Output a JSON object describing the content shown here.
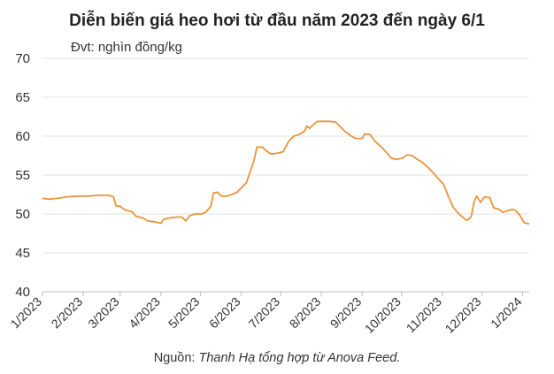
{
  "header": {
    "title": "Diễn biến giá heo hơi từ đầu năm 2023 đến ngày 6/1",
    "unit": "Đvt: nghìn đồng/kg"
  },
  "footer": {
    "source_label": "Nguồn: ",
    "source_text": "Thanh Hạ tổng hợp từ Anova Feed."
  },
  "colors": {
    "line": "#e8953a",
    "grid": "#e3e3e3"
  },
  "chart_data": {
    "type": "line",
    "title": "Diễn biến giá heo hơi từ đầu năm 2023 đến ngày 6/1",
    "ylabel": "Đvt: nghìn đồng/kg",
    "xlabel": "",
    "ylim": [
      40,
      70
    ],
    "yticks": [
      40,
      45,
      50,
      55,
      60,
      65,
      70
    ],
    "grid": "horizontal",
    "xlim": [
      "2023-01-01",
      "2024-01-06"
    ],
    "xticks": [
      {
        "date": "2023-01-01",
        "label": "1/2023"
      },
      {
        "date": "2023-02-01",
        "label": "2/2023"
      },
      {
        "date": "2023-03-01",
        "label": "3/2023"
      },
      {
        "date": "2023-04-01",
        "label": "4/2023"
      },
      {
        "date": "2023-05-01",
        "label": "5/2023"
      },
      {
        "date": "2023-06-01",
        "label": "6/2023"
      },
      {
        "date": "2023-07-01",
        "label": "7/2023"
      },
      {
        "date": "2023-08-01",
        "label": "8/2023"
      },
      {
        "date": "2023-09-01",
        "label": "9/2023"
      },
      {
        "date": "2023-10-01",
        "label": "10/2023"
      },
      {
        "date": "2023-11-01",
        "label": "11/2023"
      },
      {
        "date": "2023-12-01",
        "label": "12/2023"
      },
      {
        "date": "2024-01-01",
        "label": "1/2024"
      }
    ],
    "series": [
      {
        "points": [
          [
            "2023-01-01",
            52.0
          ],
          [
            "2023-01-06",
            51.9
          ],
          [
            "2023-01-12",
            52.0
          ],
          [
            "2023-01-20",
            52.2
          ],
          [
            "2023-01-28",
            52.3
          ],
          [
            "2023-02-05",
            52.3
          ],
          [
            "2023-02-12",
            52.4
          ],
          [
            "2023-02-20",
            52.4
          ],
          [
            "2023-02-24",
            52.2
          ],
          [
            "2023-02-26",
            51.0
          ],
          [
            "2023-03-01",
            51.0
          ],
          [
            "2023-03-05",
            50.5
          ],
          [
            "2023-03-10",
            50.3
          ],
          [
            "2023-03-13",
            49.7
          ],
          [
            "2023-03-18",
            49.5
          ],
          [
            "2023-03-22",
            49.1
          ],
          [
            "2023-03-27",
            49.0
          ],
          [
            "2023-04-01",
            48.8
          ],
          [
            "2023-04-03",
            49.3
          ],
          [
            "2023-04-08",
            49.5
          ],
          [
            "2023-04-13",
            49.6
          ],
          [
            "2023-04-17",
            49.6
          ],
          [
            "2023-04-20",
            49.1
          ],
          [
            "2023-04-23",
            49.8
          ],
          [
            "2023-04-27",
            50.0
          ],
          [
            "2023-05-02",
            50.0
          ],
          [
            "2023-05-05",
            50.2
          ],
          [
            "2023-05-09",
            51.0
          ],
          [
            "2023-05-11",
            52.7
          ],
          [
            "2023-05-14",
            52.8
          ],
          [
            "2023-05-17",
            52.3
          ],
          [
            "2023-05-21",
            52.3
          ],
          [
            "2023-05-25",
            52.5
          ],
          [
            "2023-05-29",
            52.8
          ],
          [
            "2023-06-02",
            53.5
          ],
          [
            "2023-06-05",
            54.0
          ],
          [
            "2023-06-08",
            55.5
          ],
          [
            "2023-06-11",
            57.0
          ],
          [
            "2023-06-13",
            58.6
          ],
          [
            "2023-06-17",
            58.6
          ],
          [
            "2023-06-21",
            58.0
          ],
          [
            "2023-06-24",
            57.7
          ],
          [
            "2023-06-28",
            57.8
          ],
          [
            "2023-07-03",
            58.0
          ],
          [
            "2023-07-07",
            59.3
          ],
          [
            "2023-07-11",
            60.0
          ],
          [
            "2023-07-15",
            60.2
          ],
          [
            "2023-07-19",
            60.6
          ],
          [
            "2023-07-21",
            61.3
          ],
          [
            "2023-07-23",
            61.0
          ],
          [
            "2023-07-26",
            61.5
          ],
          [
            "2023-07-29",
            61.9
          ],
          [
            "2023-08-01",
            61.9
          ],
          [
            "2023-08-08",
            61.9
          ],
          [
            "2023-08-12",
            61.8
          ],
          [
            "2023-08-15",
            61.3
          ],
          [
            "2023-08-19",
            60.6
          ],
          [
            "2023-08-23",
            60.1
          ],
          [
            "2023-08-27",
            59.7
          ],
          [
            "2023-09-01",
            59.7
          ],
          [
            "2023-09-03",
            60.3
          ],
          [
            "2023-09-07",
            60.2
          ],
          [
            "2023-09-11",
            59.3
          ],
          [
            "2023-09-15",
            58.7
          ],
          [
            "2023-09-19",
            58.0
          ],
          [
            "2023-09-23",
            57.2
          ],
          [
            "2023-09-27",
            57.0
          ],
          [
            "2023-10-02",
            57.2
          ],
          [
            "2023-10-05",
            57.6
          ],
          [
            "2023-10-09",
            57.5
          ],
          [
            "2023-10-13",
            57.0
          ],
          [
            "2023-10-17",
            56.6
          ],
          [
            "2023-10-21",
            56.0
          ],
          [
            "2023-10-25",
            55.3
          ],
          [
            "2023-10-29",
            54.5
          ],
          [
            "2023-11-02",
            53.8
          ],
          [
            "2023-11-05",
            52.5
          ],
          [
            "2023-11-09",
            50.9
          ],
          [
            "2023-11-13",
            50.1
          ],
          [
            "2023-11-17",
            49.5
          ],
          [
            "2023-11-19",
            49.2
          ],
          [
            "2023-11-21",
            49.3
          ],
          [
            "2023-11-23",
            49.7
          ],
          [
            "2023-11-25",
            51.5
          ],
          [
            "2023-11-27",
            52.3
          ],
          [
            "2023-11-30",
            51.5
          ],
          [
            "2023-12-03",
            52.2
          ],
          [
            "2023-12-07",
            52.1
          ],
          [
            "2023-12-10",
            50.8
          ],
          [
            "2023-12-14",
            50.6
          ],
          [
            "2023-12-17",
            50.2
          ],
          [
            "2023-12-20",
            50.4
          ],
          [
            "2023-12-24",
            50.6
          ],
          [
            "2023-12-27",
            50.4
          ],
          [
            "2023-12-30",
            49.8
          ],
          [
            "2024-01-02",
            48.9
          ],
          [
            "2024-01-06",
            48.7
          ]
        ]
      }
    ]
  }
}
